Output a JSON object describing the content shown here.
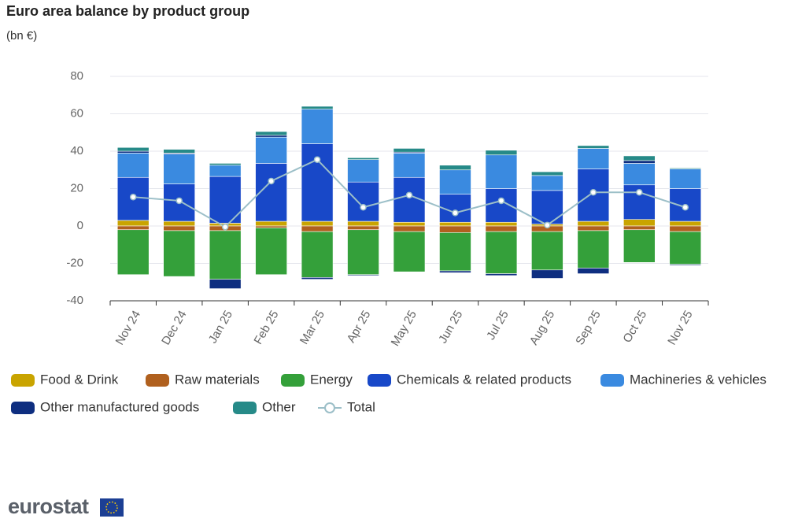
{
  "chart_data": {
    "type": "stacked-bar-line",
    "title": "Euro area balance by product group",
    "subtitle": "(bn €)",
    "categories": [
      "Nov 24",
      "Dec 24",
      "Jan 25",
      "Feb 25",
      "Mar 25",
      "Apr 25",
      "May 25",
      "Jun 25",
      "Jul 25",
      "Aug 25",
      "Sep 25",
      "Oct 25",
      "Nov 25"
    ],
    "series": [
      {
        "name": "Food & Drink",
        "color": "#c9a400",
        "values": [
          3,
          2.5,
          1.5,
          2.5,
          2.5,
          2.5,
          2,
          2,
          2,
          1,
          2.5,
          3.5,
          2.5
        ]
      },
      {
        "name": "Raw materials",
        "color": "#b0601e",
        "values": [
          -2,
          -2.5,
          -2.5,
          -1,
          -3,
          -2,
          -3,
          -3.5,
          -3,
          -3,
          -2.5,
          -2,
          -3
        ]
      },
      {
        "name": "Energy",
        "color": "#34a03a",
        "values": [
          -24,
          -24.5,
          -26,
          -25,
          -24.5,
          -24,
          -21.5,
          -20.5,
          -22.5,
          -20.5,
          -20,
          -17.5,
          -17.5
        ]
      },
      {
        "name": "Chemicals & related products",
        "color": "#1848c8",
        "values": [
          23,
          20,
          25,
          31,
          41.5,
          21,
          24,
          15,
          18,
          18,
          28,
          18.5,
          17.5
        ]
      },
      {
        "name": "Machineries & vehicles",
        "color": "#3a8ae0",
        "values": [
          13,
          16,
          6,
          14,
          18.5,
          12,
          13,
          13,
          18,
          8,
          11,
          11.5,
          10.5
        ]
      },
      {
        "name": "Other manufactured goods",
        "color": "#0e2e80",
        "values": [
          1,
          0.5,
          -5,
          1,
          -1,
          -0.5,
          0.5,
          -1,
          -1,
          -4.5,
          -3,
          1.5,
          -0.5
        ]
      },
      {
        "name": "Other",
        "color": "#268a88",
        "values": [
          2,
          2,
          1,
          2,
          1.5,
          1,
          2,
          2.5,
          2.5,
          2,
          1.5,
          2.5,
          0.5
        ]
      },
      {
        "name": "Total",
        "color": "#9cbfc8",
        "type": "line",
        "values": [
          15.5,
          13.5,
          -0.5,
          24,
          35.5,
          10,
          16.5,
          7,
          13.5,
          0.5,
          18,
          18,
          10
        ]
      }
    ],
    "ylim": [
      -40,
      80
    ],
    "yticks": [
      -40,
      -20,
      0,
      20,
      40,
      60,
      80
    ],
    "grid": true
  },
  "footer": {
    "logo": "eurostat"
  }
}
